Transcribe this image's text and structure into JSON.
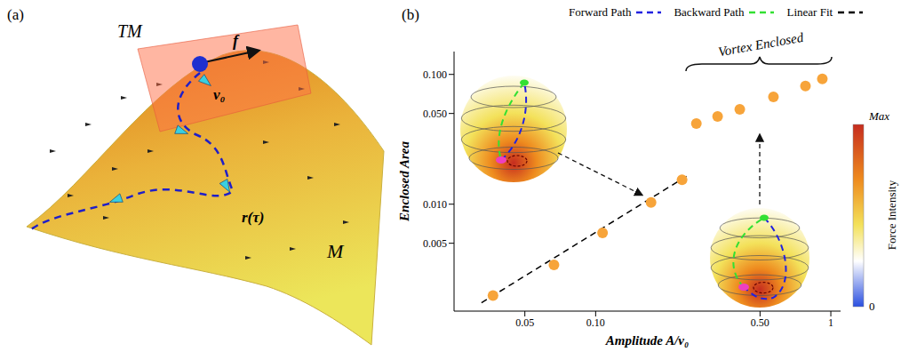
{
  "panel_a": {
    "letter": "(a)",
    "plane": "TM",
    "force": "f",
    "velocity": "v₀",
    "trajectory": "r(τ)",
    "manifold": "M"
  },
  "chart_data": {
    "type": "scatter",
    "panel": "(b)",
    "x_label": "Amplitude A/v₀",
    "y_label": "Enclosed Area",
    "log": true,
    "xlim": [
      0.025,
      1.1
    ],
    "xticks": [
      0.05,
      {
        "value": 0.1,
        "label": "0.10"
      },
      {
        "value": 0.5,
        "label": "0.50"
      },
      1
    ],
    "ylim": [
      0.0015,
      0.15
    ],
    "yticks": [
      0.005,
      {
        "value": 0.01,
        "label": "0.010"
      },
      {
        "value": 0.05,
        "label": "0.050"
      },
      {
        "value": 0.1,
        "label": "0.100"
      }
    ],
    "legend": "top right",
    "series": [
      {
        "type": "scatter",
        "marker": "circle",
        "color": "#f7a43a",
        "x": [
          0.0366,
          0.0665,
          0.107,
          0.172,
          0.233
        ],
        "values": [
          0.00198,
          0.0034,
          0.006,
          0.0103,
          0.0154
        ]
      },
      {
        "type": "scatter",
        "marker": "circle",
        "color": "#f7a43a",
        "annotation": "Vortex Enclosed",
        "x": [
          0.268,
          0.33,
          0.41,
          0.57,
          0.78,
          0.92
        ],
        "values": [
          0.0418,
          0.0474,
          0.0538,
          0.0672,
          0.0813,
          0.0924
        ]
      },
      {
        "name": "Linear Fit",
        "type": "line",
        "line_style": "dashed",
        "color": "#000000",
        "x": [
          0.0327,
          0.25
        ],
        "values": [
          0.00174,
          0.0169
        ]
      }
    ],
    "paths": [
      {
        "name": "Forward Path",
        "color": "#2222e0",
        "line_style": "dashed"
      },
      {
        "name": "Backward Path",
        "color": "#33e033",
        "line_style": "dashed"
      }
    ],
    "colorbar": {
      "title": "Force Intensity",
      "labels": [
        "Max",
        "0"
      ]
    }
  }
}
